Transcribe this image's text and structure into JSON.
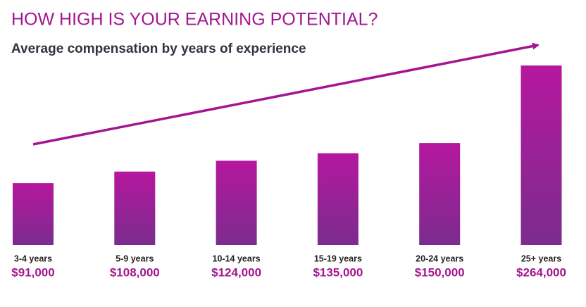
{
  "chart_data": {
    "type": "bar",
    "title": "HOW HIGH IS YOUR EARNING POTENTIAL?",
    "subtitle": "Average compensation by years of experience",
    "categories": [
      "3-4 years",
      "5-9 years",
      "10-14 years",
      "15-19 years",
      "20-24 years",
      "25+ years"
    ],
    "values": [
      91000,
      108000,
      124000,
      135000,
      150000,
      264000
    ],
    "value_labels": [
      "$91,000",
      "$108,000",
      "$124,000",
      "$135,000",
      "$150,000",
      "$264,000"
    ],
    "color": "#b5179e"
  }
}
